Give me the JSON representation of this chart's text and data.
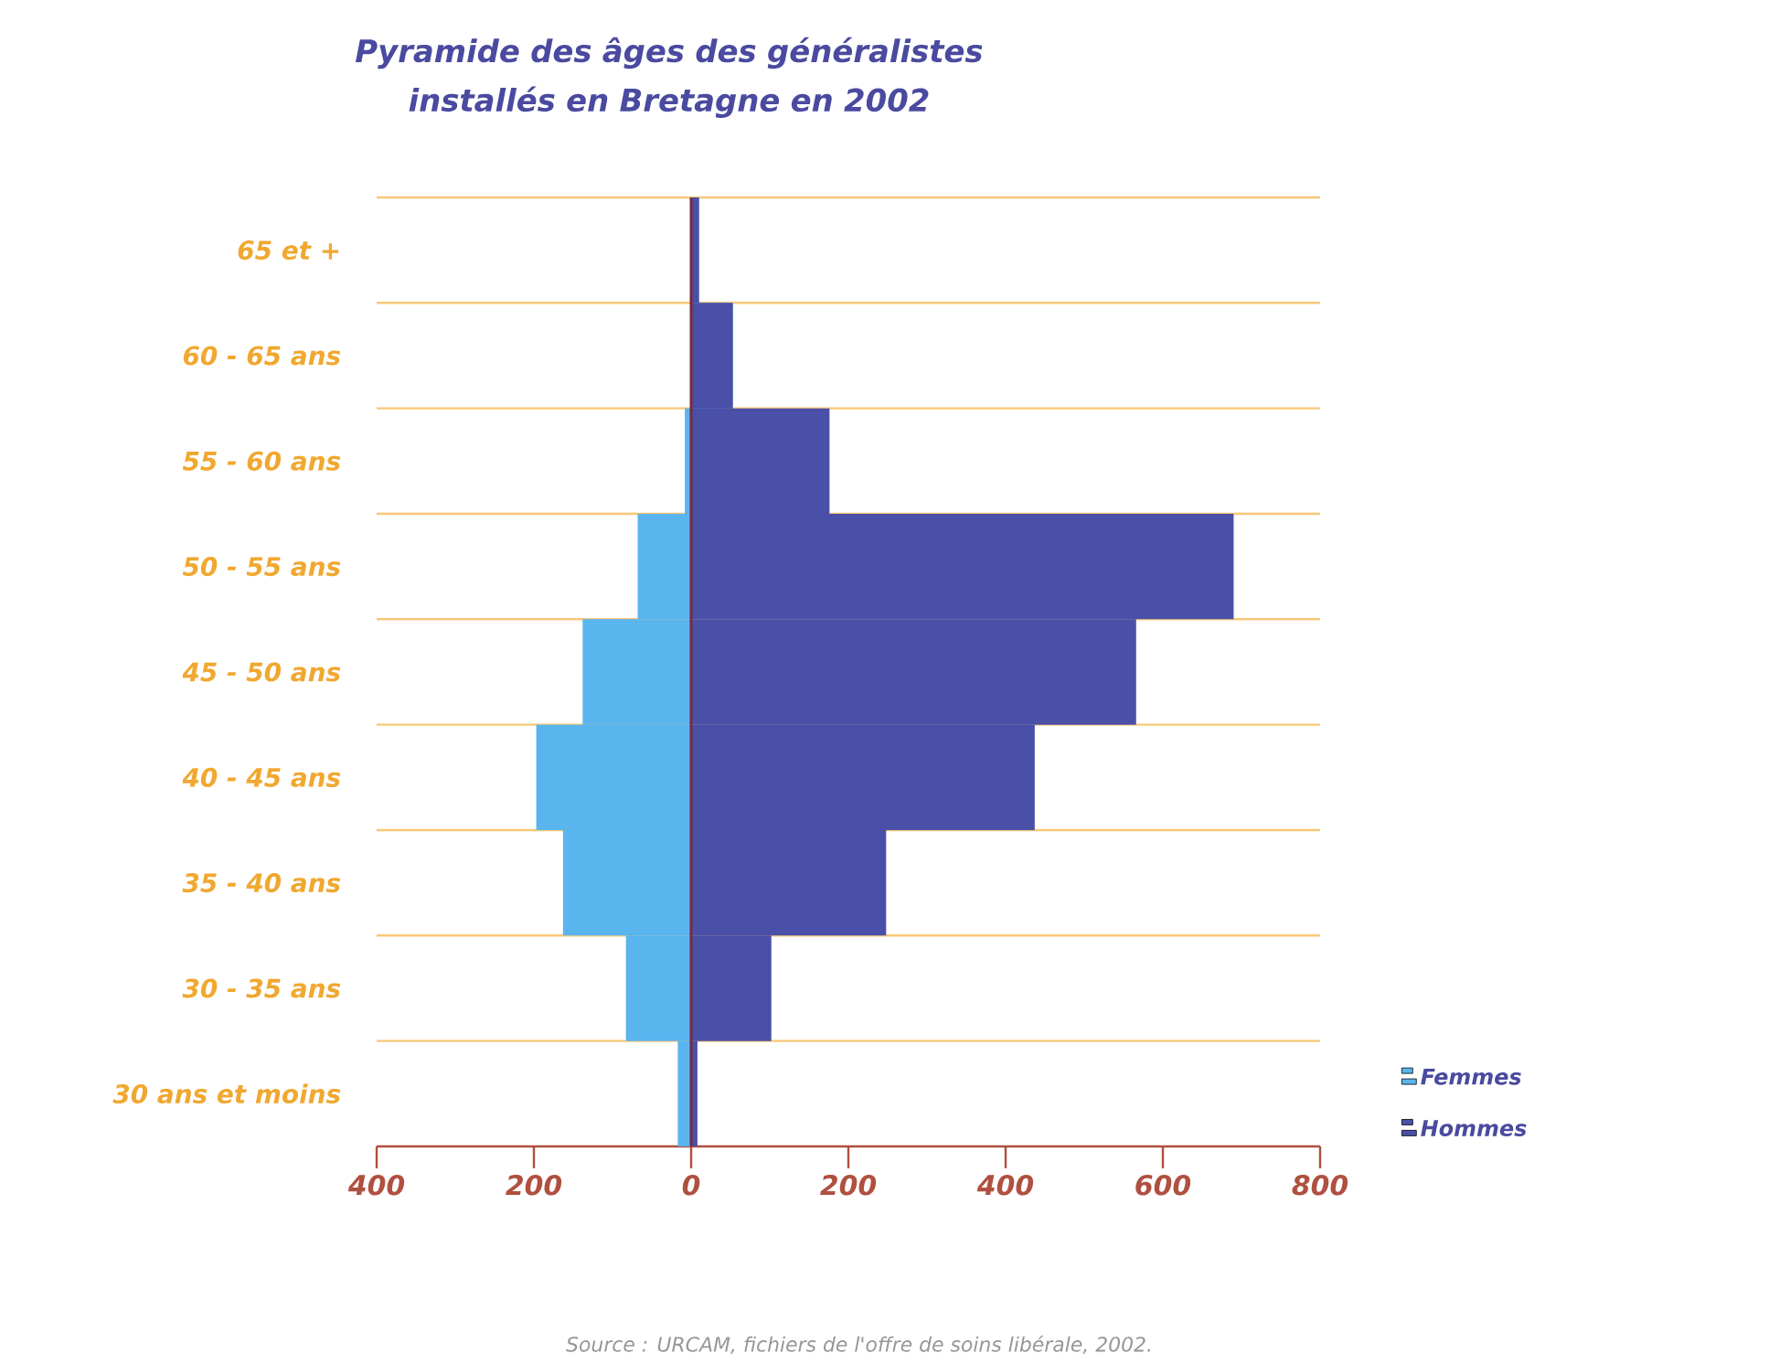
{
  "chart_data": {
    "type": "bar",
    "orientation": "horizontal",
    "title": "Pyramide des âges des généralistes installés en Bretagne en 2002",
    "categories": [
      "65 et +",
      "60 - 65 ans",
      "55 - 60 ans",
      "50 - 55 ans",
      "45 - 50 ans",
      "40 - 45 ans",
      "35 - 40 ans",
      "30 - 35 ans",
      "30 ans et moins"
    ],
    "series": [
      {
        "name": "Hommes",
        "color": "#4a4fa8",
        "values": [
          10,
          53,
          176,
          690,
          566,
          437,
          248,
          102,
          8
        ]
      },
      {
        "name": "Femmes",
        "color": "#5ab4ee",
        "values": [
          0,
          0,
          -8,
          -68,
          -138,
          -197,
          -163,
          -83,
          -17
        ]
      }
    ],
    "xlim": [
      -400,
      800
    ],
    "xticks": [
      {
        "value": -400,
        "label": "400"
      },
      {
        "value": -200,
        "label": "200"
      },
      0,
      200,
      400,
      600,
      800
    ],
    "stacked": true,
    "grid": "y",
    "legend": "bottom right",
    "ref_lines": [
      {
        "axis": "x",
        "value": 0,
        "color": "#78283c"
      }
    ],
    "annotations": [
      "Source : URCAM, fichiers de l'offre de soins libérale, 2002."
    ]
  }
}
